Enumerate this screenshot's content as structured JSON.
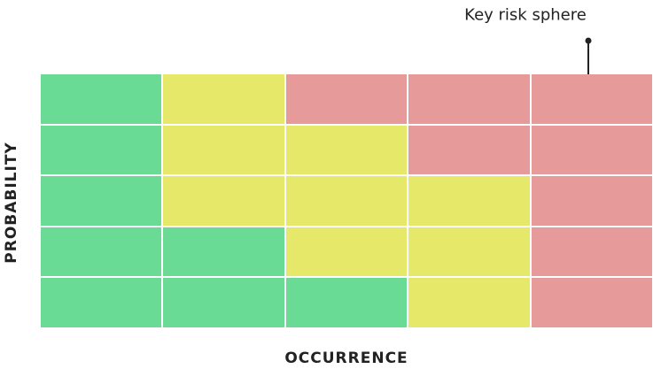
{
  "annotation": {
    "label": "Key risk sphere"
  },
  "axes": {
    "x_label": "OCCURRENCE",
    "y_label": "PROBABILITY"
  },
  "colors": {
    "green": "#6ADB94",
    "yellow": "#E6E86A",
    "red": "#E69A9A"
  },
  "matrix": [
    [
      "green",
      "yellow",
      "red",
      "red",
      "red"
    ],
    [
      "green",
      "yellow",
      "yellow",
      "red",
      "red"
    ],
    [
      "green",
      "yellow",
      "yellow",
      "yellow",
      "red"
    ],
    [
      "green",
      "green",
      "yellow",
      "yellow",
      "red"
    ],
    [
      "green",
      "green",
      "green",
      "yellow",
      "red"
    ]
  ]
}
